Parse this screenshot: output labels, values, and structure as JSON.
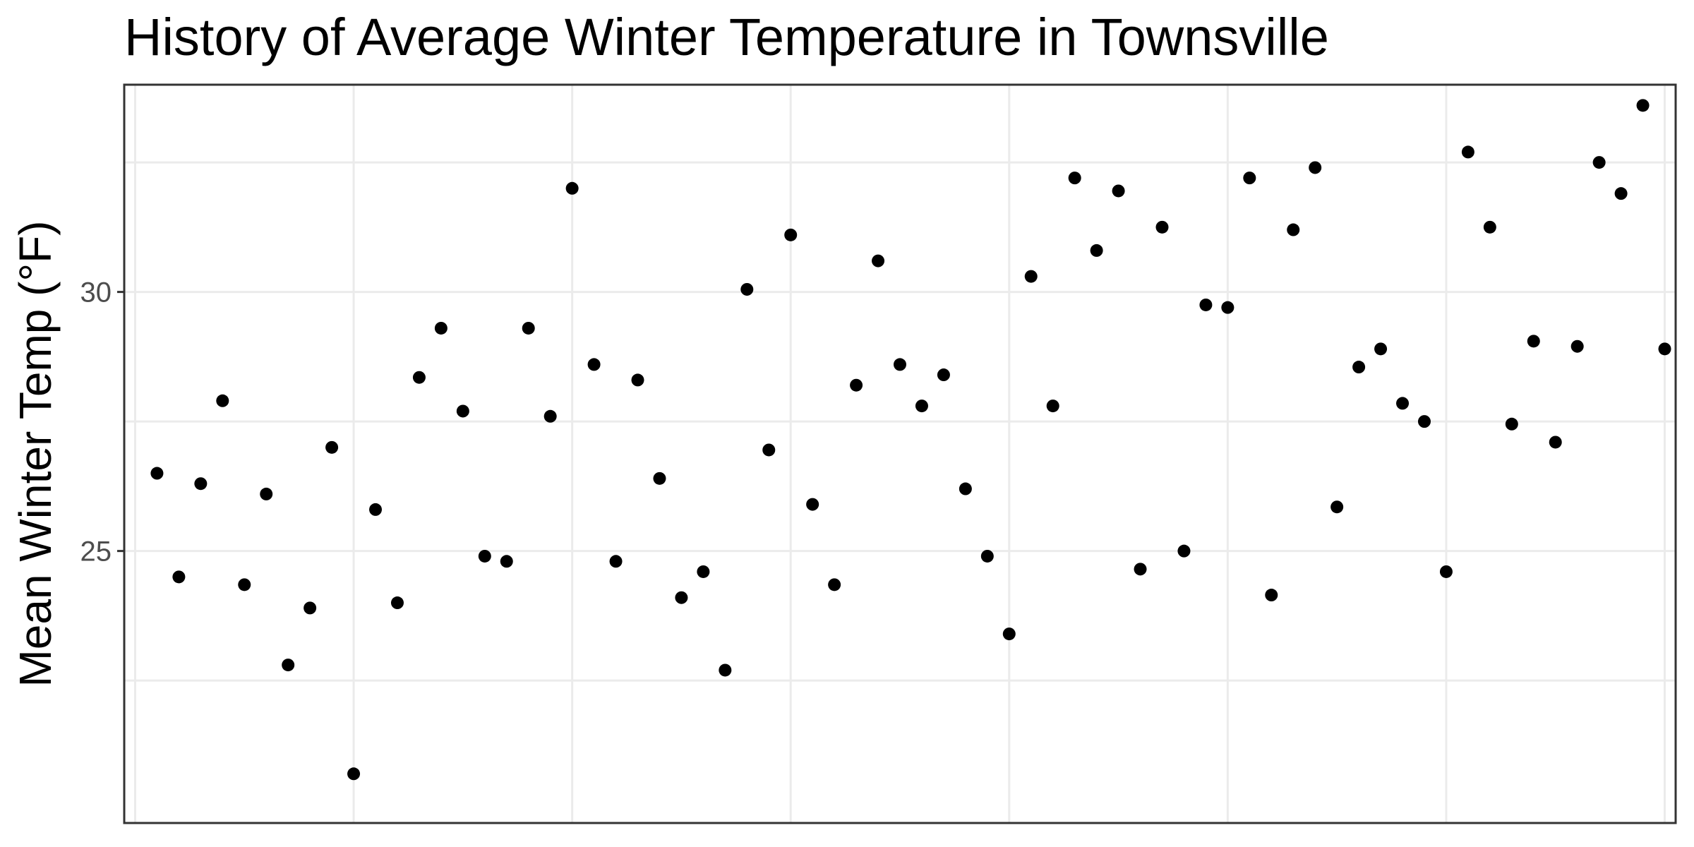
{
  "chart_data": {
    "type": "scatter",
    "title": "History of Average Winter Temperature in Townsville",
    "xlabel": "",
    "ylabel": "Mean Winter Temp (°F)",
    "xlim": [
      -0.5,
      70.5
    ],
    "ylim": [
      19.75,
      34.0
    ],
    "x_ticks": [
      0,
      10,
      20,
      30,
      40,
      50,
      60,
      70
    ],
    "x_tick_labels": [],
    "y_ticks": [
      22.5,
      25,
      27.5,
      30,
      32.5
    ],
    "y_tick_labels": [
      "",
      "25",
      "",
      "30",
      ""
    ],
    "grid": true,
    "point_color": "#000000",
    "x": [
      1,
      2,
      3,
      4,
      5,
      6,
      7,
      8,
      9,
      10,
      11,
      12,
      13,
      14,
      15,
      16,
      17,
      18,
      19,
      20,
      21,
      22,
      23,
      24,
      25,
      26,
      27,
      28,
      29,
      30,
      31,
      32,
      33,
      34,
      35,
      36,
      37,
      38,
      39,
      40,
      41,
      42,
      43,
      44,
      45,
      46,
      47,
      48,
      49,
      50,
      51,
      52,
      53,
      54,
      55,
      56,
      57,
      58,
      59,
      60,
      61,
      62,
      63,
      64,
      65,
      66,
      67,
      68,
      69,
      70
    ],
    "y": [
      26.5,
      24.5,
      26.3,
      27.9,
      24.35,
      26.1,
      22.8,
      23.9,
      27.0,
      20.7,
      25.8,
      24.0,
      28.35,
      29.3,
      27.7,
      24.9,
      24.8,
      29.3,
      27.6,
      32.0,
      28.6,
      24.8,
      28.3,
      26.4,
      24.1,
      24.6,
      22.7,
      30.05,
      26.95,
      31.1,
      25.9,
      24.35,
      28.2,
      30.6,
      28.6,
      27.8,
      28.4,
      26.2,
      24.9,
      23.4,
      30.3,
      27.8,
      32.2,
      30.8,
      31.95,
      24.65,
      31.25,
      25.0,
      29.75,
      29.7,
      32.2,
      24.15,
      31.2,
      32.4,
      25.85,
      28.55,
      28.9,
      27.85,
      27.5,
      24.6,
      32.7,
      31.25,
      27.45,
      29.05,
      27.1,
      28.95,
      32.5,
      31.9,
      33.6,
      28.9
    ]
  }
}
